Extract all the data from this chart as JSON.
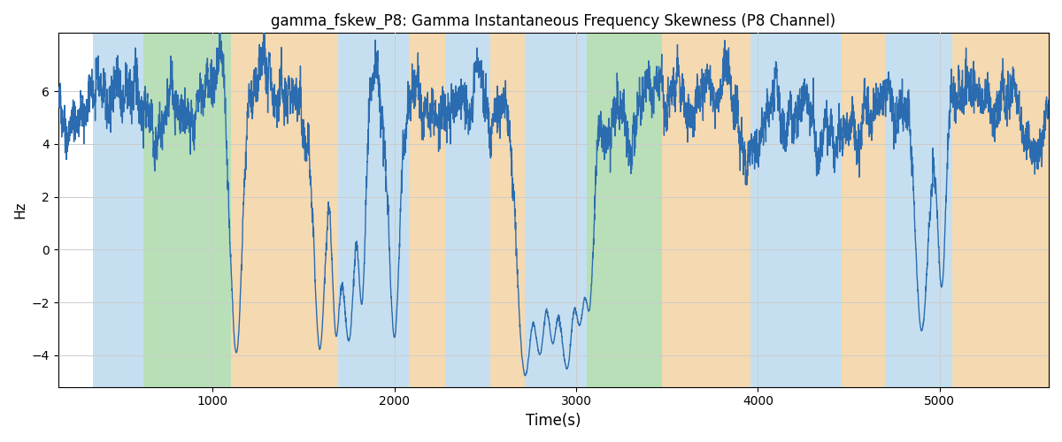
{
  "title": "gamma_fskew_P8: Gamma Instantaneous Frequency Skewness (P8 Channel)",
  "xlabel": "Time(s)",
  "ylabel": "Hz",
  "xlim": [
    150,
    5600
  ],
  "ylim": [
    -5.2,
    8.2
  ],
  "yticks": [
    -4,
    -2,
    0,
    2,
    4,
    6
  ],
  "xticks": [
    1000,
    2000,
    3000,
    4000,
    5000
  ],
  "line_color": "#2b6cb0",
  "line_width": 1.0,
  "seed": 42,
  "n_points": 5500,
  "base_signal": 5.5,
  "segments": [
    {
      "xstart": 150,
      "xend": 340,
      "color": "none"
    },
    {
      "xstart": 340,
      "xend": 620,
      "color": "blue"
    },
    {
      "xstart": 620,
      "xend": 1100,
      "color": "green"
    },
    {
      "xstart": 1100,
      "xend": 1260,
      "color": "orange"
    },
    {
      "xstart": 1260,
      "xend": 1690,
      "color": "orange"
    },
    {
      "xstart": 1690,
      "xend": 1900,
      "color": "blue"
    },
    {
      "xstart": 1900,
      "xend": 2080,
      "color": "blue"
    },
    {
      "xstart": 2080,
      "xend": 2280,
      "color": "orange"
    },
    {
      "xstart": 2280,
      "xend": 2530,
      "color": "blue"
    },
    {
      "xstart": 2530,
      "xend": 2720,
      "color": "orange"
    },
    {
      "xstart": 2720,
      "xend": 3060,
      "color": "blue"
    },
    {
      "xstart": 3060,
      "xend": 3220,
      "color": "green"
    },
    {
      "xstart": 3220,
      "xend": 3470,
      "color": "green"
    },
    {
      "xstart": 3470,
      "xend": 3720,
      "color": "orange"
    },
    {
      "xstart": 3720,
      "xend": 3960,
      "color": "orange"
    },
    {
      "xstart": 3960,
      "xend": 4460,
      "color": "blue"
    },
    {
      "xstart": 4460,
      "xend": 4700,
      "color": "orange"
    },
    {
      "xstart": 4700,
      "xend": 5000,
      "color": "blue"
    },
    {
      "xstart": 5000,
      "xend": 5070,
      "color": "blue"
    },
    {
      "xstart": 5070,
      "xend": 5600,
      "color": "orange"
    }
  ],
  "band_colors": {
    "blue": "#c5dff0",
    "green": "#b8dfb8",
    "orange": "#f5d9b0"
  },
  "spikes": [
    {
      "t": 1130,
      "depth": -4.2,
      "sharpness": 8
    },
    {
      "t": 1590,
      "depth": -4.1,
      "sharpness": 8
    },
    {
      "t": 1680,
      "depth": -3.5,
      "sharpness": 10
    },
    {
      "t": 1750,
      "depth": -3.7,
      "sharpness": 8
    },
    {
      "t": 1820,
      "depth": -2.3,
      "sharpness": 12
    },
    {
      "t": 2000,
      "depth": -3.6,
      "sharpness": 10
    },
    {
      "t": 2720,
      "depth": -5.1,
      "sharpness": 6
    },
    {
      "t": 2800,
      "depth": -4.2,
      "sharpness": 7
    },
    {
      "t": 2870,
      "depth": -3.5,
      "sharpness": 8
    },
    {
      "t": 2950,
      "depth": -4.8,
      "sharpness": 6
    },
    {
      "t": 3020,
      "depth": -3.0,
      "sharpness": 9
    },
    {
      "t": 3070,
      "depth": -2.5,
      "sharpness": 10
    },
    {
      "t": 4900,
      "depth": -3.3,
      "sharpness": 8
    },
    {
      "t": 5010,
      "depth": -1.6,
      "sharpness": 12
    }
  ]
}
